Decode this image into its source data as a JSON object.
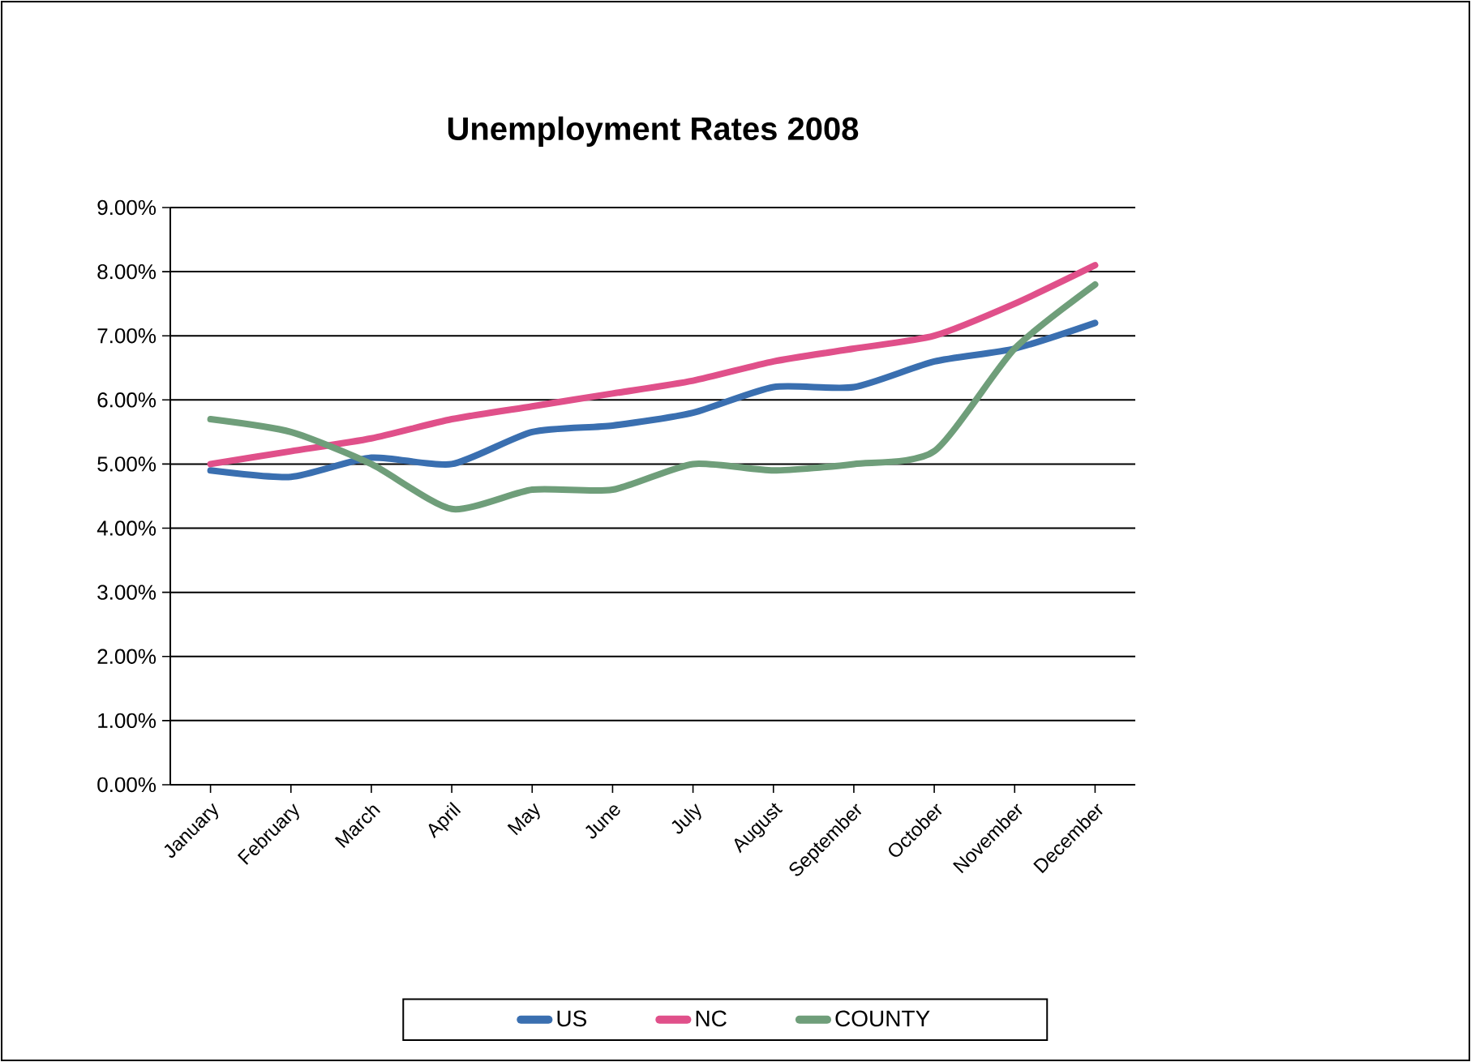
{
  "chart_data": {
    "type": "line",
    "title": "Unemployment Rates 2008",
    "categories": [
      "January",
      "February",
      "March",
      "April",
      "May",
      "June",
      "July",
      "August",
      "September",
      "October",
      "November",
      "December"
    ],
    "series": [
      {
        "name": "US",
        "color": "#3a6fb0",
        "values": [
          4.9,
          4.8,
          5.1,
          5.0,
          5.5,
          5.6,
          5.8,
          6.2,
          6.2,
          6.6,
          6.8,
          7.2
        ]
      },
      {
        "name": "NC",
        "color": "#e0508a",
        "values": [
          5.0,
          5.2,
          5.4,
          5.7,
          5.9,
          6.1,
          6.3,
          6.6,
          6.8,
          7.0,
          7.5,
          8.1
        ]
      },
      {
        "name": "COUNTY",
        "color": "#6f9e7a",
        "values": [
          5.7,
          5.5,
          5.0,
          4.3,
          4.6,
          4.6,
          5.0,
          4.9,
          5.0,
          5.2,
          6.8,
          7.8
        ]
      }
    ],
    "ylim": [
      0,
      9
    ],
    "yticks": [
      {
        "value": 0,
        "label": "0.00%"
      },
      {
        "value": 1,
        "label": "1.00%"
      },
      {
        "value": 2,
        "label": "2.00%"
      },
      {
        "value": 3,
        "label": "3.00%"
      },
      {
        "value": 4,
        "label": "4.00%"
      },
      {
        "value": 5,
        "label": "5.00%"
      },
      {
        "value": 6,
        "label": "6.00%"
      },
      {
        "value": 7,
        "label": "7.00%"
      },
      {
        "value": 8,
        "label": "8.00%"
      },
      {
        "value": 9,
        "label": "9.00%"
      }
    ],
    "grid": "y",
    "legend": "bottom",
    "marker": "none",
    "line_style": "solid"
  }
}
